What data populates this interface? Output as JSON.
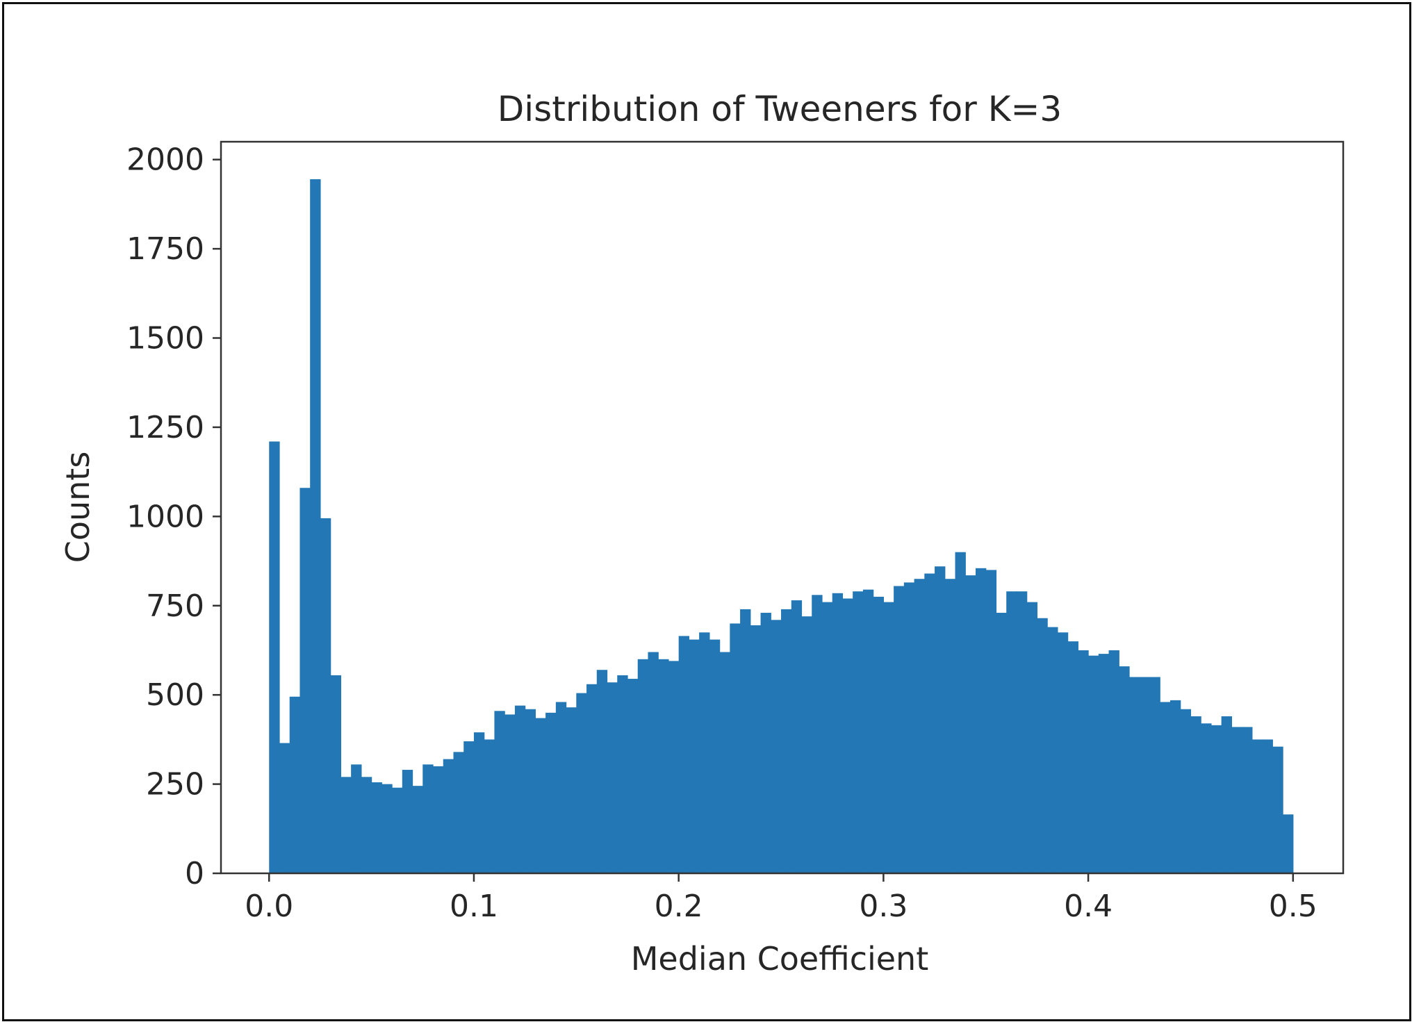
{
  "chart_data": {
    "type": "bar",
    "title": "Distribution of Tweeners for K=3",
    "xlabel": "Median Coefficient",
    "ylabel": "Counts",
    "xlim": [
      -0.0235,
      0.5245
    ],
    "ylim": [
      0,
      2050
    ],
    "xticks": [
      "0.0",
      "0.1",
      "0.2",
      "0.3",
      "0.4",
      "0.5"
    ],
    "yticks": [
      "0",
      "250",
      "500",
      "750",
      "1000",
      "1250",
      "1500",
      "1750",
      "2000"
    ],
    "grid": false,
    "bar_color": "#2277b4",
    "bins": {
      "start": 0.0,
      "width": 0.005,
      "counts": [
        1210,
        365,
        495,
        1080,
        1945,
        995,
        555,
        270,
        305,
        270,
        255,
        250,
        240,
        290,
        245,
        305,
        300,
        320,
        340,
        370,
        395,
        375,
        455,
        445,
        470,
        460,
        435,
        450,
        480,
        465,
        505,
        530,
        570,
        535,
        555,
        545,
        600,
        620,
        600,
        595,
        665,
        655,
        675,
        655,
        620,
        700,
        740,
        695,
        730,
        710,
        740,
        765,
        720,
        780,
        760,
        785,
        770,
        790,
        795,
        775,
        760,
        805,
        815,
        825,
        840,
        860,
        825,
        900,
        835,
        855,
        850,
        730,
        790,
        790,
        760,
        715,
        690,
        675,
        650,
        625,
        610,
        615,
        625,
        580,
        550,
        550,
        550,
        480,
        485,
        460,
        440,
        420,
        415,
        440,
        410,
        410,
        375,
        375,
        355,
        165
      ]
    }
  }
}
